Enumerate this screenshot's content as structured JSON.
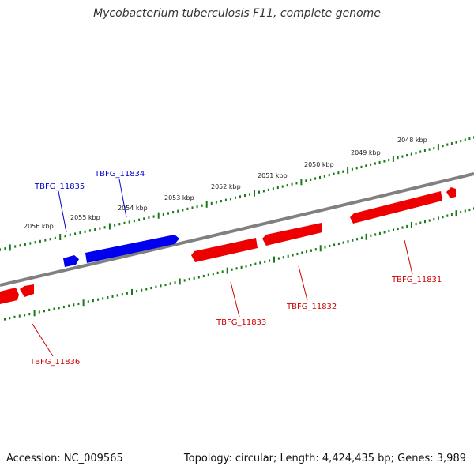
{
  "title": "Mycobacterium tuberculosis F11, complete genome",
  "footer": {
    "accession": "Accession: NC_009565",
    "stats": "Topology: circular; Length: 4,424,435 bp; Genes: 3,989"
  },
  "colors": {
    "forward_gene": "#0000ee",
    "reverse_gene": "#ee0000",
    "backbone": "#808080",
    "ticks": "#1a7a1a"
  },
  "kbp_labels": [
    {
      "text": "2048 kbp",
      "kbp": 2048
    },
    {
      "text": "2049 kbp",
      "kbp": 2049
    },
    {
      "text": "2050 kbp",
      "kbp": 2050
    },
    {
      "text": "2051 kbp",
      "kbp": 2051
    },
    {
      "text": "2052 kbp",
      "kbp": 2052
    },
    {
      "text": "2053 kbp",
      "kbp": 2053
    },
    {
      "text": "2054 kbp",
      "kbp": 2054
    },
    {
      "text": "2055 kbp",
      "kbp": 2055
    },
    {
      "text": "2056 kbp",
      "kbp": 2056
    }
  ],
  "genes": [
    {
      "name": "TBFG_11831",
      "strand": "reverse"
    },
    {
      "name": "TBFG_11832",
      "strand": "reverse"
    },
    {
      "name": "TBFG_11833",
      "strand": "reverse"
    },
    {
      "name": "TBFG_11834",
      "strand": "forward"
    },
    {
      "name": "TBFG_11835",
      "strand": "forward"
    },
    {
      "name": "TBFG_11836",
      "strand": "reverse"
    }
  ]
}
